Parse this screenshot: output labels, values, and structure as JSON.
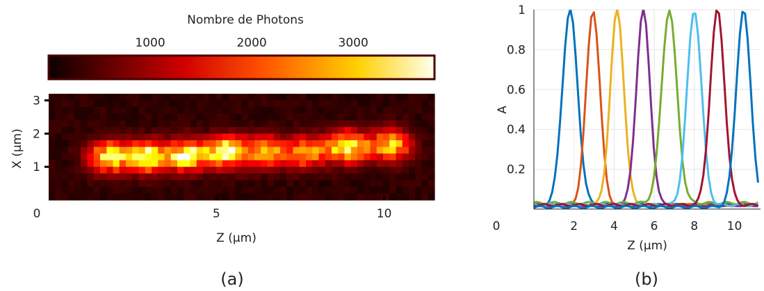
{
  "chart_data": [
    {
      "panel": "(a)",
      "type": "heatmap",
      "colorbar": {
        "label": "Nombre de Photons",
        "ticks": [
          1000,
          2000,
          3000
        ],
        "range": [
          0,
          3800
        ],
        "colormap": "hot"
      },
      "xlabel": "Z (µm)",
      "ylabel": "X (µm)",
      "xlim": [
        0,
        11.5
      ],
      "ylim": [
        0,
        3.2
      ],
      "xticks": [
        0,
        5,
        10
      ],
      "yticks": [
        1,
        2,
        3
      ],
      "spots": [
        {
          "z": 1.8,
          "x": 1.3,
          "peak": 3000
        },
        {
          "z": 2.9,
          "x": 1.3,
          "peak": 3100
        },
        {
          "z": 4.1,
          "x": 1.35,
          "peak": 3200
        },
        {
          "z": 5.3,
          "x": 1.45,
          "peak": 3500
        },
        {
          "z": 6.5,
          "x": 1.45,
          "peak": 2500
        },
        {
          "z": 7.7,
          "x": 1.45,
          "peak": 2400
        },
        {
          "z": 8.9,
          "x": 1.6,
          "peak": 3300
        },
        {
          "z": 10.2,
          "x": 1.65,
          "peak": 2500
        }
      ]
    },
    {
      "panel": "(b)",
      "type": "line",
      "xlabel": "Z (µm)",
      "ylabel": "A",
      "xlim": [
        0,
        11.3
      ],
      "ylim": [
        0,
        1
      ],
      "xticks": [
        2,
        4,
        6,
        8,
        10
      ],
      "yticks": [
        0.2,
        0.4,
        0.6,
        0.8,
        1
      ],
      "ytick_labels": [
        "0.2",
        "0.4",
        "0.6",
        "0.8",
        "1"
      ],
      "origin_label": "0",
      "grid": true,
      "series": [
        {
          "center": 1.8,
          "sigma": 0.38,
          "baseline": 0.02,
          "color": "#0072BD"
        },
        {
          "center": 2.95,
          "sigma": 0.34,
          "baseline": 0.02,
          "color": "#D95319"
        },
        {
          "center": 4.15,
          "sigma": 0.34,
          "baseline": 0.02,
          "color": "#EDB120"
        },
        {
          "center": 5.45,
          "sigma": 0.34,
          "baseline": 0.02,
          "color": "#7E2F8E"
        },
        {
          "center": 6.75,
          "sigma": 0.38,
          "baseline": 0.03,
          "color": "#77AC30"
        },
        {
          "center": 8.0,
          "sigma": 0.36,
          "baseline": 0.02,
          "color": "#4DBEEE"
        },
        {
          "center": 9.15,
          "sigma": 0.36,
          "baseline": 0.02,
          "color": "#A2142F"
        },
        {
          "center": 10.45,
          "sigma": 0.36,
          "baseline": 0.01,
          "color": "#0072BD"
        }
      ]
    }
  ],
  "labels": {
    "panel_a": "(a)",
    "panel_b": "(b)"
  }
}
